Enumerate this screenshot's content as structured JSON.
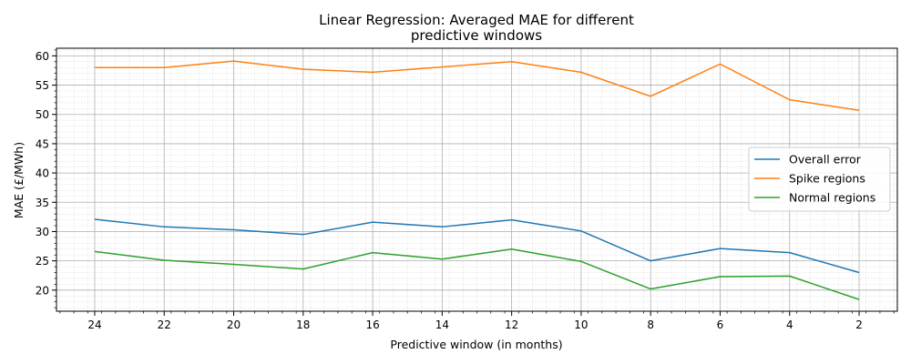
{
  "chart_data": {
    "type": "line",
    "title_line1": "Linear Regression: Averaged MAE for different",
    "title_line2": "predictive windows",
    "xlabel": "Predictive window (in months)",
    "ylabel": "MAE (£/MWh)",
    "x": [
      24,
      22,
      20,
      18,
      16,
      14,
      12,
      10,
      8,
      6,
      4,
      2
    ],
    "xlim": [
      25.1,
      0.9
    ],
    "ylim": [
      16.4,
      61.3
    ],
    "x_inverted": true,
    "x_ticks": [
      24,
      22,
      20,
      18,
      16,
      14,
      12,
      10,
      8,
      6,
      4,
      2
    ],
    "y_ticks": [
      20,
      25,
      30,
      35,
      40,
      45,
      50,
      55,
      60
    ],
    "grid": "major and minor",
    "legend_position": "center-right",
    "series": [
      {
        "name": "Overall error",
        "color": "#1f77b4",
        "values": [
          32.1,
          30.8,
          30.3,
          29.5,
          31.6,
          30.8,
          32.0,
          30.1,
          25.0,
          27.1,
          26.4,
          23.0
        ]
      },
      {
        "name": "Spike regions",
        "color": "#ff7f0e",
        "values": [
          58.0,
          58.0,
          59.1,
          57.7,
          57.2,
          58.1,
          59.0,
          57.2,
          53.1,
          58.6,
          52.5,
          50.7
        ]
      },
      {
        "name": "Normal regions",
        "color": "#2ca02c",
        "values": [
          26.6,
          25.1,
          24.4,
          23.6,
          26.4,
          25.3,
          27.0,
          24.9,
          20.2,
          22.3,
          22.4,
          18.4
        ]
      }
    ]
  }
}
